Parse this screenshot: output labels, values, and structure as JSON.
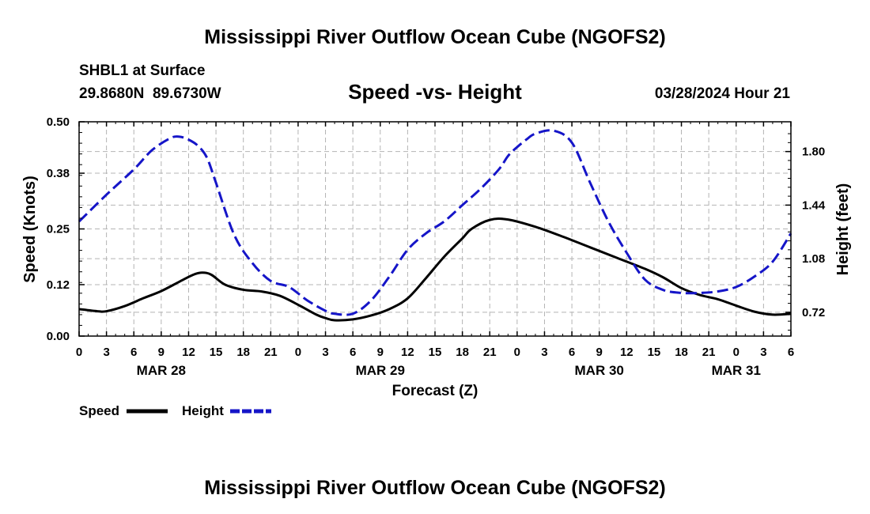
{
  "page": {
    "title": "Mississippi River Outflow Ocean Cube (NGOFS2)",
    "footer_title": "Mississippi River Outflow Ocean Cube (NGOFS2)",
    "station": "SHBL1 at Surface",
    "coords": "29.8680N  89.6730W",
    "subtitle": "Speed -vs- Height",
    "datetime": "03/28/2024 Hour 21"
  },
  "colors": {
    "speed": "#000000",
    "height": "#1515c8",
    "grid": "#b4b4b4"
  },
  "chart_data": {
    "type": "line",
    "title": "Speed -vs- Height",
    "xlabel": "Forecast (Z)",
    "ylabel": "Speed (Knots)",
    "y2label": "Height (feet)",
    "x_unit": "hours since MAR 28 00Z",
    "xlim": [
      0,
      78
    ],
    "ylim": [
      0,
      0.5
    ],
    "y2lim": [
      0.56,
      2.0
    ],
    "x_ticks": [
      0,
      3,
      6,
      9,
      12,
      15,
      18,
      21,
      24,
      27,
      30,
      33,
      36,
      39,
      42,
      45,
      48,
      51,
      54,
      57,
      60,
      63,
      66,
      69,
      72,
      75,
      78
    ],
    "x_tick_labels": [
      "0",
      "3",
      "6",
      "9",
      "12",
      "15",
      "18",
      "21",
      "0",
      "3",
      "6",
      "9",
      "12",
      "15",
      "18",
      "21",
      "0",
      "3",
      "6",
      "9",
      "12",
      "15",
      "18",
      "21",
      "0",
      "3",
      "6"
    ],
    "date_labels": [
      {
        "x": 9,
        "label": "MAR 28"
      },
      {
        "x": 33,
        "label": "MAR 29"
      },
      {
        "x": 57,
        "label": "MAR 30"
      },
      {
        "x": 72,
        "label": "MAR 31"
      }
    ],
    "y_ticks": [
      0,
      0.12,
      0.25,
      0.38,
      0.5
    ],
    "y_tick_labels": [
      "0.00",
      "0.12",
      "0.25",
      "0.38",
      "0.50"
    ],
    "y2_ticks": [
      0.72,
      1.08,
      1.44,
      1.8
    ],
    "y2_tick_labels": [
      "0.72",
      "1.08",
      "1.44",
      "1.80"
    ],
    "legend": [
      {
        "name": "Speed",
        "style": "solid"
      },
      {
        "name": "Height",
        "style": "dashed"
      }
    ],
    "series": [
      {
        "name": "Speed",
        "axis": "left",
        "x": [
          0,
          2,
          3,
          5,
          7,
          9,
          11,
          12.5,
          13.5,
          14.5,
          16,
          18,
          20,
          22,
          24,
          26,
          27,
          28,
          30,
          32,
          34,
          36,
          38,
          40,
          42,
          43,
          45,
          47,
          50,
          53,
          56,
          59,
          62,
          64,
          66,
          68,
          70,
          72,
          74,
          76,
          78
        ],
        "y": [
          0.063,
          0.058,
          0.058,
          0.07,
          0.088,
          0.105,
          0.127,
          0.143,
          0.148,
          0.143,
          0.12,
          0.108,
          0.104,
          0.094,
          0.073,
          0.05,
          0.042,
          0.037,
          0.039,
          0.048,
          0.063,
          0.088,
          0.135,
          0.185,
          0.228,
          0.25,
          0.271,
          0.272,
          0.255,
          0.232,
          0.207,
          0.182,
          0.157,
          0.137,
          0.112,
          0.096,
          0.086,
          0.071,
          0.057,
          0.05,
          0.052
        ]
      },
      {
        "name": "Height",
        "axis": "right",
        "x": [
          0,
          3,
          6,
          8,
          10,
          11,
          12,
          13,
          14,
          15,
          17,
          19,
          21,
          23,
          25,
          27,
          28,
          30,
          32,
          34,
          36,
          38,
          40,
          42,
          44,
          46,
          47,
          48,
          49,
          50,
          52,
          54,
          56,
          58,
          60,
          62,
          64,
          66,
          68,
          70,
          72,
          74,
          76,
          78
        ],
        "y": [
          1.33,
          1.51,
          1.68,
          1.81,
          1.89,
          1.9,
          1.88,
          1.84,
          1.76,
          1.59,
          1.24,
          1.05,
          0.93,
          0.89,
          0.8,
          0.73,
          0.71,
          0.71,
          0.8,
          0.96,
          1.14,
          1.25,
          1.33,
          1.44,
          1.55,
          1.68,
          1.77,
          1.83,
          1.88,
          1.92,
          1.94,
          1.86,
          1.59,
          1.33,
          1.12,
          0.94,
          0.87,
          0.85,
          0.85,
          0.86,
          0.89,
          0.96,
          1.06,
          1.25
        ]
      }
    ]
  }
}
